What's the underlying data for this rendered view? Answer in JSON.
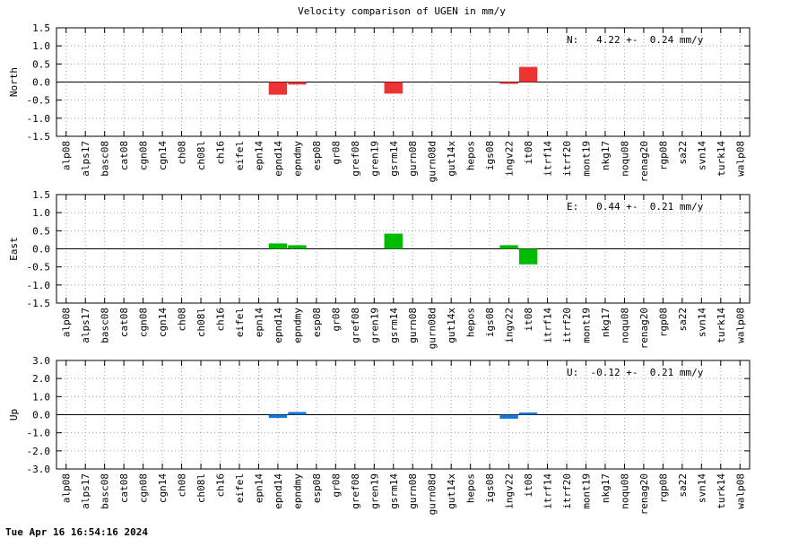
{
  "title": "Velocity comparison of UGEN in mm/y",
  "timestamp": "Tue Apr 16 16:54:16 2024",
  "chart_data": [
    {
      "type": "bar",
      "ylabel": "North",
      "ylim": [
        -1.5,
        1.5
      ],
      "yticks": [
        -1.5,
        -1.0,
        -0.5,
        0.0,
        0.5,
        1.0,
        1.5
      ],
      "grid": true,
      "color": "#ee3333",
      "annotation": "N:   4.22 +-  0.24 mm/y",
      "categories": [
        "alp08",
        "alps17",
        "basc08",
        "cat08",
        "cgn08",
        "cgn14",
        "ch08",
        "ch08l",
        "ch16",
        "eifel",
        "epn14",
        "epnd14",
        "epndmy",
        "esp08",
        "gr08",
        "gref08",
        "gren19",
        "gsrm14",
        "gurn08",
        "gurn08d",
        "gut14x",
        "hepos",
        "igs08",
        "ingv22",
        "it08",
        "itrf14",
        "itrf20",
        "mont19",
        "nkg17",
        "noqu08",
        "renag20",
        "rgp08",
        "sa22",
        "svn14",
        "turk14",
        "walp08"
      ],
      "values": [
        null,
        null,
        null,
        null,
        null,
        null,
        null,
        null,
        null,
        null,
        null,
        -0.35,
        -0.07,
        null,
        null,
        null,
        null,
        -0.32,
        null,
        null,
        null,
        null,
        null,
        -0.05,
        0.42,
        null,
        null,
        null,
        null,
        null,
        null,
        null,
        null,
        null,
        null,
        null
      ]
    },
    {
      "type": "bar",
      "ylabel": "East",
      "ylim": [
        -1.5,
        1.5
      ],
      "yticks": [
        -1.5,
        -1.0,
        -0.5,
        0.0,
        0.5,
        1.0,
        1.5
      ],
      "grid": true,
      "color": "#00bb00",
      "annotation": "E:   0.44 +-  0.21 mm/y",
      "categories": [
        "alp08",
        "alps17",
        "basc08",
        "cat08",
        "cgn08",
        "cgn14",
        "ch08",
        "ch08l",
        "ch16",
        "eifel",
        "epn14",
        "epnd14",
        "epndmy",
        "esp08",
        "gr08",
        "gref08",
        "gren19",
        "gsrm14",
        "gurn08",
        "gurn08d",
        "gut14x",
        "hepos",
        "igs08",
        "ingv22",
        "it08",
        "itrf14",
        "itrf20",
        "mont19",
        "nkg17",
        "noqu08",
        "renag20",
        "rgp08",
        "sa22",
        "svn14",
        "turk14",
        "walp08"
      ],
      "values": [
        null,
        null,
        null,
        null,
        null,
        null,
        null,
        null,
        null,
        null,
        null,
        0.15,
        0.1,
        null,
        null,
        null,
        null,
        0.42,
        null,
        null,
        null,
        null,
        null,
        0.1,
        -0.43,
        null,
        null,
        null,
        null,
        null,
        null,
        null,
        null,
        null,
        null,
        null
      ]
    },
    {
      "type": "bar",
      "ylabel": "Up",
      "ylim": [
        -3.0,
        3.0
      ],
      "yticks": [
        -3.0,
        -2.0,
        -1.0,
        0.0,
        1.0,
        2.0,
        3.0
      ],
      "grid": true,
      "color": "#1177dd",
      "annotation": "U:  -0.12 +-  0.21 mm/y",
      "categories": [
        "alp08",
        "alps17",
        "basc08",
        "cat08",
        "cgn08",
        "cgn14",
        "ch08",
        "ch08l",
        "ch16",
        "eifel",
        "epn14",
        "epnd14",
        "epndmy",
        "esp08",
        "gr08",
        "gref08",
        "gren19",
        "gsrm14",
        "gurn08",
        "gurn08d",
        "gut14x",
        "hepos",
        "igs08",
        "ingv22",
        "it08",
        "itrf14",
        "itrf20",
        "mont19",
        "nkg17",
        "noqu08",
        "renag20",
        "rgp08",
        "sa22",
        "svn14",
        "turk14",
        "walp08"
      ],
      "values": [
        null,
        null,
        null,
        null,
        null,
        null,
        null,
        null,
        null,
        null,
        null,
        -0.18,
        0.15,
        null,
        null,
        null,
        null,
        null,
        null,
        null,
        null,
        null,
        null,
        -0.22,
        0.12,
        null,
        null,
        null,
        null,
        null,
        null,
        null,
        null,
        null,
        null,
        null
      ]
    }
  ]
}
